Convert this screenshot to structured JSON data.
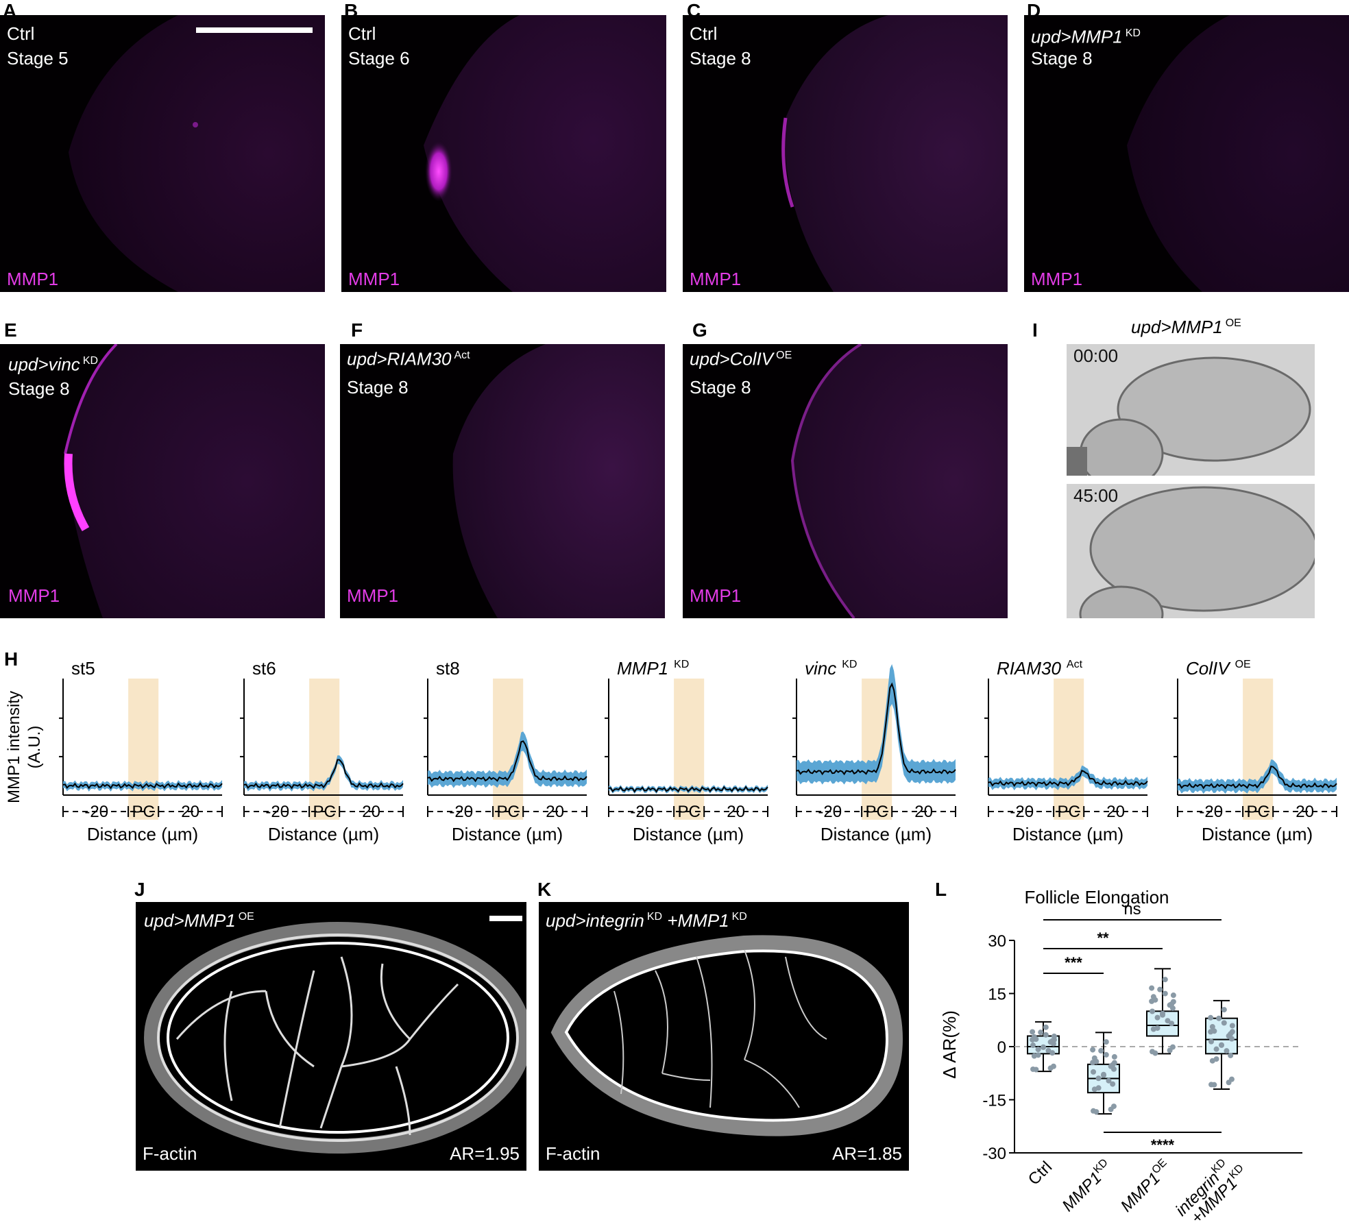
{
  "panels": {
    "A": {
      "letter": "A",
      "line1": "Ctrl",
      "line2": "Stage 5",
      "marker": "MMP1"
    },
    "B": {
      "letter": "B",
      "line1": "Ctrl",
      "line2": "Stage 6",
      "marker": "MMP1"
    },
    "C": {
      "letter": "C",
      "line1": "Ctrl",
      "line2": "Stage 8",
      "marker": "MMP1"
    },
    "D": {
      "letter": "D",
      "line1": "upd>MMP1",
      "line1_sup": "KD",
      "line2": "Stage 8",
      "marker": "MMP1"
    },
    "E": {
      "letter": "E",
      "line1": "upd>vinc",
      "line1_sup": "KD",
      "line2": "Stage 8",
      "marker": "MMP1"
    },
    "F": {
      "letter": "F",
      "line1": "upd>RIAM30",
      "line1_sup": "Act",
      "line2": "Stage 8",
      "marker": "MMP1"
    },
    "G": {
      "letter": "G",
      "line1": "upd>ColIV",
      "line1_sup": "OE",
      "line2": "Stage 8",
      "marker": "MMP1"
    },
    "I": {
      "letter": "I",
      "title": "upd>MMP1",
      "title_sup": "OE",
      "time1": "00:00",
      "time2": "45:00"
    },
    "H": {
      "letter": "H"
    },
    "J": {
      "letter": "J",
      "title": "upd>MMP1",
      "title_sup": "OE",
      "stain": "F-actin",
      "ar": "AR=1.95"
    },
    "K": {
      "letter": "K",
      "title": "upd>integrin",
      "title_sup": "KD",
      "title2": "+MMP1",
      "title2_sup": "KD",
      "stain": "F-actin",
      "ar": "AR=1.85"
    },
    "L": {
      "letter": "L"
    }
  },
  "profile_plots": {
    "ylabel_line1": "MMP1 intensity",
    "ylabel_line2": "(A.U.)",
    "xlabel": "Distance (µm)",
    "tick_left": "-20",
    "tick_mid": "PC",
    "tick_right": "20",
    "plots": [
      {
        "title": "st5",
        "title_italic": false,
        "sup": "",
        "peak": 0.0,
        "base": 0.08,
        "band": 0.06
      },
      {
        "title": "st6",
        "title_italic": false,
        "sup": "",
        "peak": 0.22,
        "base": 0.08,
        "band": 0.06
      },
      {
        "title": "st8",
        "title_italic": false,
        "sup": "",
        "peak": 0.32,
        "base": 0.14,
        "band": 0.12
      },
      {
        "title": "MMP1",
        "title_italic": true,
        "sup": "KD",
        "peak": 0.0,
        "base": 0.05,
        "band": 0.04
      },
      {
        "title": "vinc",
        "title_italic": true,
        "sup": "KD",
        "peak": 0.75,
        "base": 0.2,
        "band": 0.18
      },
      {
        "title": "RIAM30",
        "title_italic": true,
        "sup": "Act",
        "peak": 0.1,
        "base": 0.1,
        "band": 0.08
      },
      {
        "title": "ColIV",
        "title_italic": true,
        "sup": "OE",
        "peak": 0.16,
        "base": 0.08,
        "band": 0.1
      }
    ]
  },
  "chart_data": {
    "type": "box",
    "title": "Follicle Elongation",
    "ylabel": "Δ AR(%)",
    "ylim": [
      -30,
      30
    ],
    "yticks": [
      "30",
      "15",
      "0",
      "-15",
      "-30"
    ],
    "categories": [
      "Ctrl",
      "MMP1 KD",
      "MMP1 OE",
      "integrin KD +MMP1 KD"
    ],
    "category_labels": [
      {
        "main": "Ctrl",
        "sup": ""
      },
      {
        "main": "MMP1",
        "sup": "KD"
      },
      {
        "main": "MMP1",
        "sup": "OE"
      },
      {
        "main": "integrin",
        "sup": "KD",
        "main2": "+MMP1",
        "sup2": "KD"
      }
    ],
    "boxes": [
      {
        "min": -7,
        "q1": -2,
        "median": 0,
        "q3": 3,
        "max": 7
      },
      {
        "min": -19,
        "q1": -13,
        "median": -9,
        "q3": -5,
        "max": 4
      },
      {
        "min": -2,
        "q1": 3,
        "median": 6,
        "q3": 10,
        "max": 22
      },
      {
        "min": -12,
        "q1": -2,
        "median": 2,
        "q3": 8,
        "max": 13
      }
    ],
    "significance": [
      {
        "from": 0,
        "to": 1,
        "label": "***"
      },
      {
        "from": 0,
        "to": 2,
        "label": "**"
      },
      {
        "from": 0,
        "to": 3,
        "label": "ns"
      },
      {
        "from": 1,
        "to": 3,
        "label": "****"
      }
    ],
    "colors": {
      "box_fill": "#d6f0f8",
      "point": "#8a9aa6",
      "zero_line": "#aaaaaa"
    }
  },
  "colors": {
    "magenta": "#e23ce6",
    "band": "#f8e6c8",
    "blue": "#5ba6d4"
  }
}
